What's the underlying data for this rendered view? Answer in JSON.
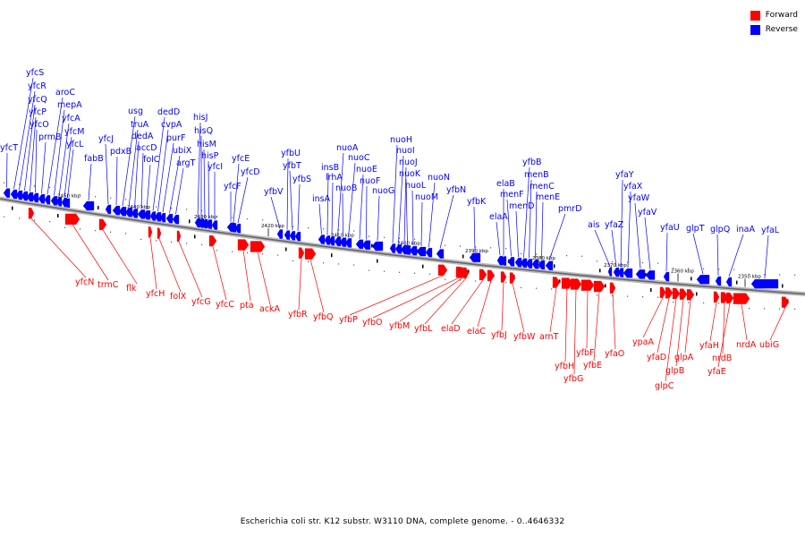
{
  "legend": {
    "forward_label": "Forward",
    "reverse_label": "Reverse",
    "forward_color": "#ff0000",
    "reverse_color": "#0000ff"
  },
  "caption": "Escherichia coli str. K12 substr. W3110 DNA, complete genome. - 0..4646332",
  "axis_ticks": [
    "2450 kbp",
    "2440 kbp",
    "2430 kbp",
    "2420 kbp",
    "2410 kbp",
    "2400 kbp",
    "2390 kbp",
    "2380 kbp",
    "2370 kbp",
    "2360 kbp",
    "2350 kbp"
  ],
  "reverse_genes": [
    "yfcT",
    "yfcS",
    "yfcR",
    "yfcQ",
    "yfcP",
    "yfcO",
    "prmB",
    "aroC",
    "mepA",
    "yfcA",
    "yfcM",
    "yfcL",
    "fabB",
    "yfcJ",
    "pdxB",
    "usg",
    "truA",
    "dedA",
    "accD",
    "folC",
    "dedD",
    "cvpA",
    "purF",
    "ubiX",
    "argT",
    "hisJ",
    "hisQ",
    "hisM",
    "hisP",
    "yfcI",
    "yfcF",
    "yfcE",
    "yfcD",
    "yfbV",
    "yfbU",
    "yfbT",
    "yfbS",
    "insA",
    "insB",
    "lrhA",
    "nuoA",
    "nuoB",
    "nuoC",
    "nuoE",
    "nuoF",
    "nuoG",
    "nuoH",
    "nuoI",
    "nuoJ",
    "nuoK",
    "nuoL",
    "nuoM",
    "nuoN",
    "yfbN",
    "yfbK",
    "elaA",
    "elaB",
    "menF",
    "menD",
    "yfbB",
    "menB",
    "menC",
    "menE",
    "pmrD",
    "ais",
    "yfaZ",
    "yfaY",
    "yfaX",
    "yfaW",
    "yfaV",
    "yfaU",
    "glpT",
    "glpQ",
    "inaA",
    "yfaL"
  ],
  "forward_genes": [
    "yfcN",
    "trmC",
    "flk",
    "yfcH",
    "folX",
    "yfcG",
    "yfcC",
    "pta",
    "ackA",
    "yfbR",
    "yfbQ",
    "yfbP",
    "yfbO",
    "yfbM",
    "yfbL",
    "elaD",
    "elaC",
    "yfbJ",
    "yfbW",
    "arnT",
    "yfbH",
    "yfbG",
    "yfbF",
    "yfbE",
    "yfaO",
    "ypaA",
    "yfaD",
    "glpC",
    "glpB",
    "glpA",
    "yfaH",
    "nrdB",
    "yfaE",
    "nrdA",
    "ubiG"
  ]
}
